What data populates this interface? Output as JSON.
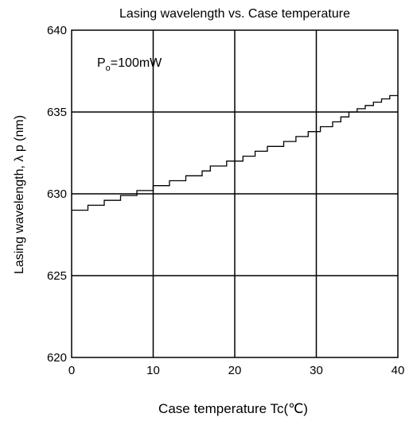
{
  "chart_data": {
    "type": "line",
    "title": "Lasing wavelength vs. Case temperature",
    "xlabel": "Case temperature  Tc(℃)",
    "ylabel": "Lasing wavelength,  λ p (nm)",
    "xlim": [
      0,
      40
    ],
    "ylim": [
      620,
      640
    ],
    "x_ticks": [
      0,
      10,
      20,
      30,
      40
    ],
    "y_ticks": [
      620,
      625,
      630,
      635,
      640
    ],
    "grid": true,
    "annotation": {
      "main": "P",
      "sub": "o",
      "rest": "=100mW"
    },
    "series": [
      {
        "color": "#000000",
        "step_start_x": [
          0,
          2,
          4,
          6,
          8,
          10,
          12,
          14,
          16,
          17,
          19,
          21,
          22.5,
          24,
          26,
          27.5,
          29,
          30.5,
          32,
          33,
          34,
          35,
          36,
          37,
          38,
          39,
          40
        ],
        "step_y": [
          629.0,
          629.3,
          629.6,
          629.9,
          630.2,
          630.5,
          630.8,
          631.1,
          631.4,
          631.7,
          632.0,
          632.3,
          632.6,
          632.9,
          633.2,
          633.5,
          633.8,
          634.1,
          634.4,
          634.7,
          635.0,
          635.2,
          635.4,
          635.6,
          635.8,
          636.0,
          636.0
        ]
      }
    ]
  }
}
